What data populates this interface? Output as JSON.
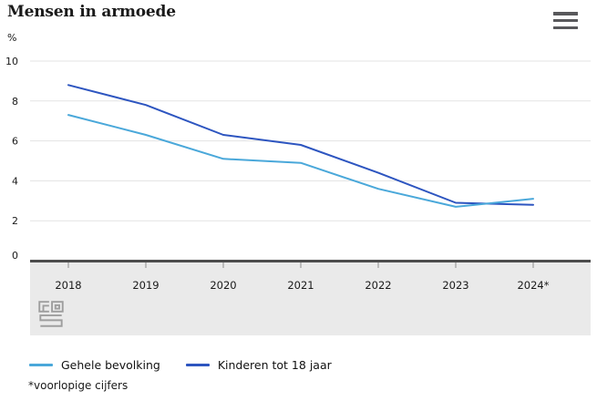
{
  "header": {
    "title": "Mensen in armoede",
    "menu_icon": "hamburger-menu-icon"
  },
  "chart_data": {
    "type": "line",
    "title": "Mensen in armoede",
    "unit_label": "%",
    "categories": [
      "2018",
      "2019",
      "2020",
      "2021",
      "2022",
      "2023",
      "2024*"
    ],
    "series": [
      {
        "name": "Gehele bevolking",
        "color": "#4aa8da",
        "values": [
          7.3,
          6.3,
          5.1,
          4.9,
          3.6,
          2.7,
          3.1
        ]
      },
      {
        "name": "Kinderen tot 18 jaar",
        "color": "#2d55c0",
        "values": [
          8.8,
          7.8,
          6.3,
          5.8,
          4.4,
          2.9,
          2.8
        ]
      }
    ],
    "yticks": [
      0,
      2,
      4,
      6,
      8,
      10
    ],
    "ylim": [
      0,
      10
    ],
    "grid": true,
    "legend_position": "bottom",
    "axis_band_color": "#eaeaea",
    "gridline_color": "#e3e3e3",
    "zero_line_color": "#4d4d4d"
  },
  "footnote": "*voorlopige cijfers",
  "branding": {
    "logo": "cbs-logo"
  }
}
